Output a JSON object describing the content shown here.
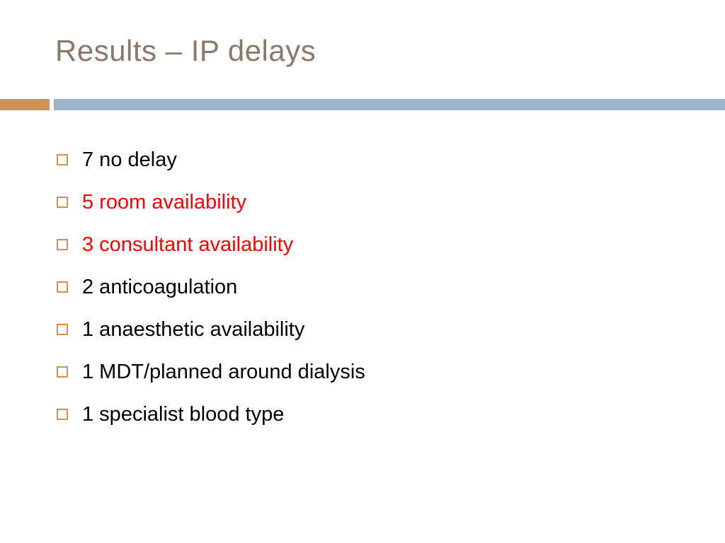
{
  "title": {
    "text": "Results – IP delays",
    "color": "#8a7968",
    "fontsize": 42
  },
  "rule": {
    "accent_color": "#d19159",
    "accent_width": 70,
    "gap_width": 6,
    "main_color": "#9ab3cb",
    "height": 16
  },
  "bullets": {
    "box_border_color": "#d19159",
    "box_size": 16,
    "item_fontsize": 29,
    "item_line_height": 60,
    "items": [
      {
        "text": "7 no delay",
        "color": "#000000"
      },
      {
        "text": "5 room availability",
        "color": "#ff0000"
      },
      {
        "text": "3 consultant availability",
        "color": "#ff0000"
      },
      {
        "text": "2 anticoagulation",
        "color": "#000000"
      },
      {
        "text": "1 anaesthetic availability",
        "color": "#000000"
      },
      {
        "text": "1 MDT/planned around dialysis",
        "color": "#000000"
      },
      {
        "text": "1 specialist blood type",
        "color": "#000000"
      }
    ]
  },
  "background_color": "#ffffff"
}
